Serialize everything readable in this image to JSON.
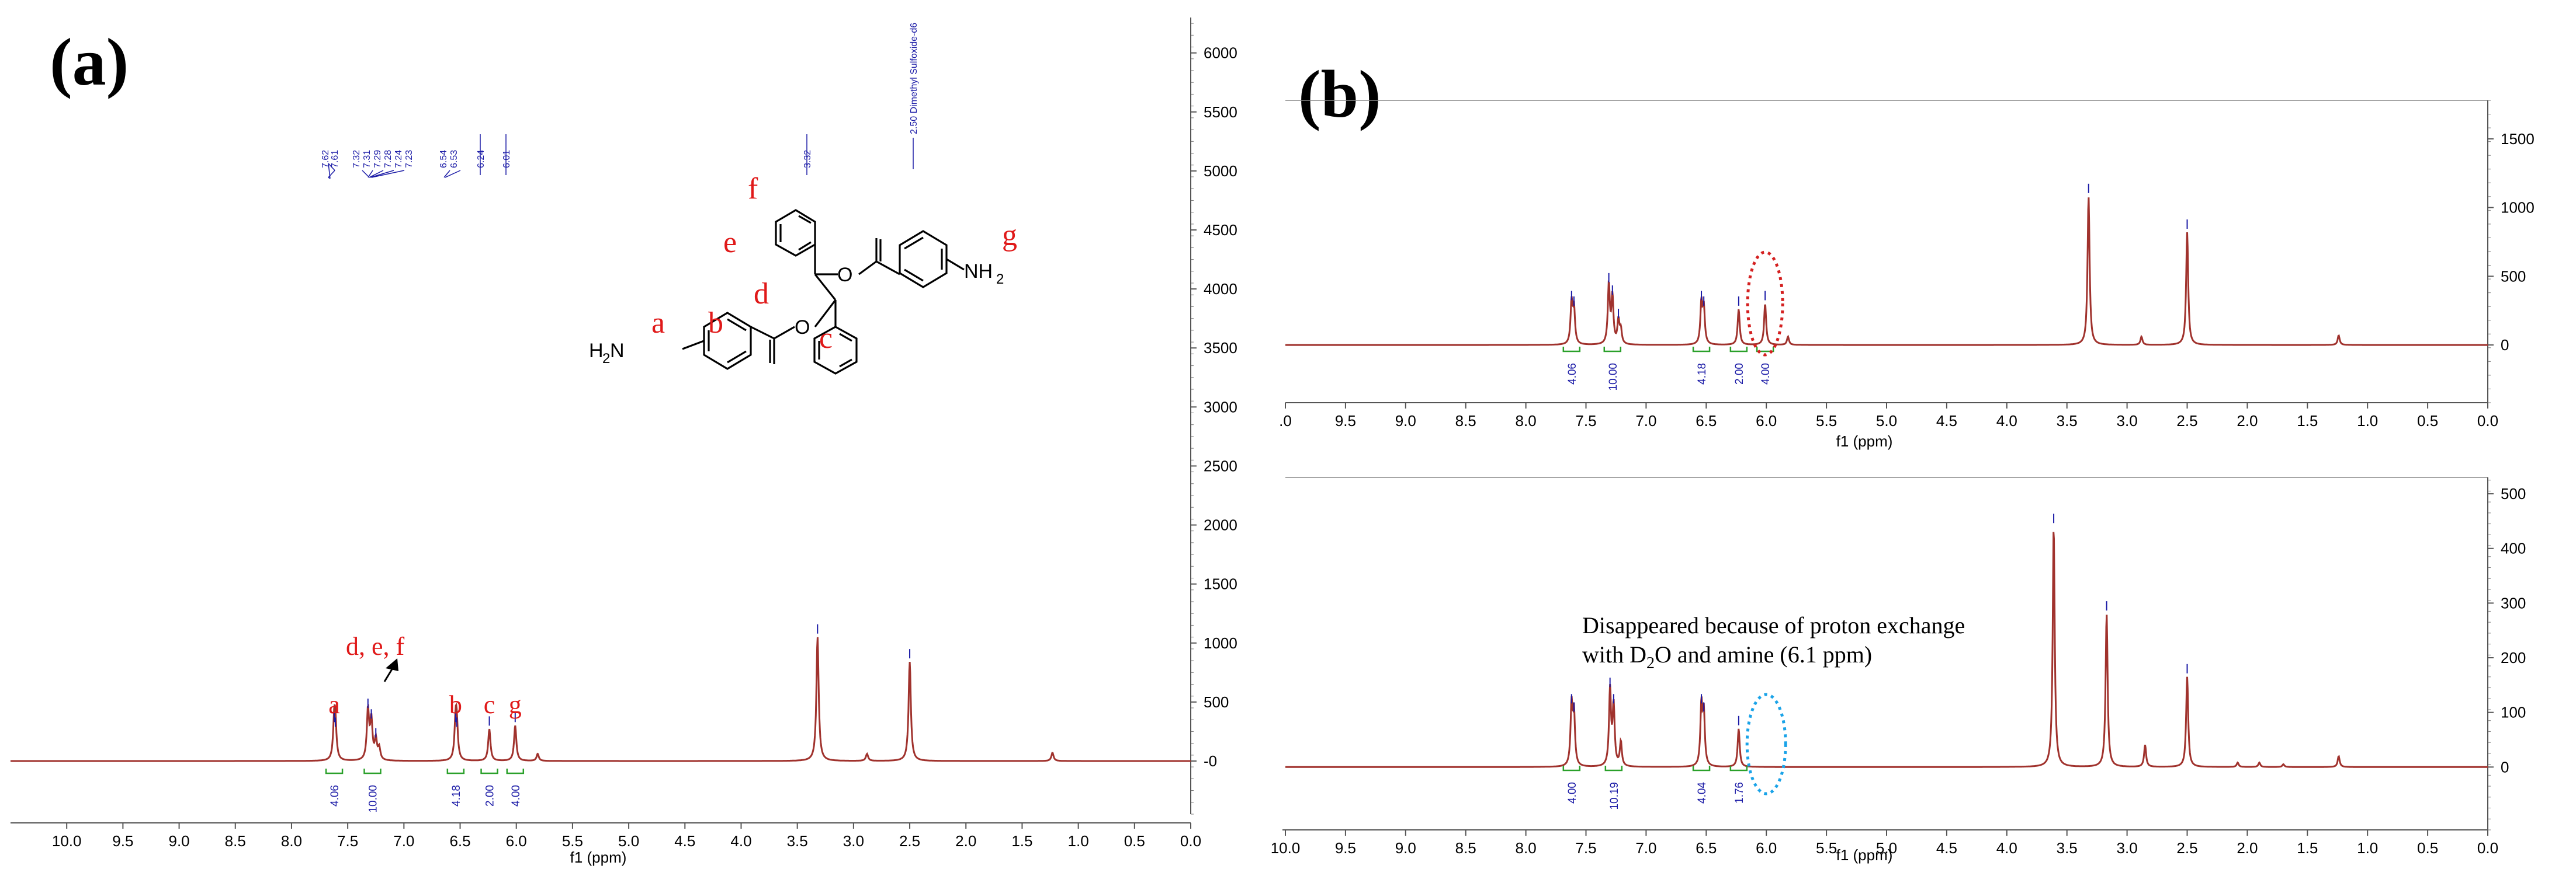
{
  "chart_data": [
    {
      "panel": "(a)",
      "type": "line",
      "xlabel": "f1 (ppm)",
      "xlim": [
        10.5,
        0.0
      ],
      "ylim": [
        -450,
        6300
      ],
      "x_ticks": [
        "10.0",
        "9.5",
        "9.0",
        "8.5",
        "8.0",
        "7.5",
        "7.0",
        "6.5",
        "6.0",
        "5.5",
        "5.0",
        "4.5",
        "4.0",
        "3.5",
        "3.0",
        "2.5",
        "2.0",
        "1.5",
        "1.0",
        "0.5",
        "0.0"
      ],
      "y_ticks": [
        "-0",
        "500",
        "1000",
        "1500",
        "2000",
        "2500",
        "3000",
        "3500",
        "4000",
        "4500",
        "5000",
        "5500",
        "6000"
      ],
      "series": [
        {
          "peaks": [
            {
              "x": 7.62,
              "y": 300
            },
            {
              "x": 7.61,
              "y": 260
            },
            {
              "x": 7.32,
              "y": 420
            },
            {
              "x": 7.29,
              "y": 330
            },
            {
              "x": 7.25,
              "y": 170
            },
            {
              "x": 7.22,
              "y": 100
            },
            {
              "x": 6.54,
              "y": 300
            },
            {
              "x": 6.53,
              "y": 260
            },
            {
              "x": 6.24,
              "y": 270
            },
            {
              "x": 6.01,
              "y": 300
            },
            {
              "x": 5.81,
              "y": 60
            },
            {
              "x": 3.32,
              "y": 1050
            },
            {
              "x": 2.88,
              "y": 60
            },
            {
              "x": 2.5,
              "y": 840
            },
            {
              "x": 1.23,
              "y": 70
            }
          ]
        }
      ],
      "peak_labels": [
        "7.62",
        "7.61",
        "7.32",
        "7.31",
        "7.29",
        "7.28",
        "7.24",
        "7.23",
        "6.54",
        "6.53",
        "6.24",
        "6.01",
        "3.32",
        "2.50 Dimethyl Sulfoxide-d6"
      ],
      "integrals": [
        {
          "x": 7.62,
          "value": "4.06"
        },
        {
          "x": 7.28,
          "value": "10.00"
        },
        {
          "x": 6.54,
          "value": "4.18"
        },
        {
          "x": 6.24,
          "value": "2.00"
        },
        {
          "x": 6.01,
          "value": "4.00"
        }
      ],
      "assignments": [
        {
          "x": 7.62,
          "label": "a"
        },
        {
          "x": 6.54,
          "label": "b"
        },
        {
          "x": 6.24,
          "label": "c"
        },
        {
          "x": 6.01,
          "label": "g"
        }
      ],
      "annotations": [
        "d, e, f"
      ]
    },
    {
      "panel": "(b) top",
      "type": "line",
      "xlabel": "f1 (ppm)",
      "xlim": [
        10.0,
        0.0
      ],
      "ylim": [
        -420,
        1780
      ],
      "x_ticks": [
        ".0",
        "9.5",
        "9.0",
        "8.5",
        "8.0",
        "7.5",
        "7.0",
        "6.5",
        "6.0",
        "5.5",
        "5.0",
        "4.5",
        "4.0",
        "3.5",
        "3.0",
        "2.5",
        "2.0",
        "1.5",
        "1.0",
        "0.5",
        "0.0"
      ],
      "y_ticks": [
        "0",
        "500",
        "1000",
        "1500"
      ],
      "series": [
        {
          "peaks": [
            {
              "x": 7.62,
              "y": 300
            },
            {
              "x": 7.6,
              "y": 260
            },
            {
              "x": 7.31,
              "y": 430
            },
            {
              "x": 7.28,
              "y": 340
            },
            {
              "x": 7.23,
              "y": 170
            },
            {
              "x": 7.21,
              "y": 100
            },
            {
              "x": 6.54,
              "y": 300
            },
            {
              "x": 6.52,
              "y": 260
            },
            {
              "x": 6.23,
              "y": 260
            },
            {
              "x": 6.01,
              "y": 300
            },
            {
              "x": 5.82,
              "y": 60
            },
            {
              "x": 3.32,
              "y": 1080
            },
            {
              "x": 2.88,
              "y": 60
            },
            {
              "x": 2.5,
              "y": 820
            },
            {
              "x": 1.24,
              "y": 70
            }
          ]
        }
      ],
      "integrals": [
        {
          "x": 7.62,
          "value": "4.06"
        },
        {
          "x": 7.28,
          "value": "10.00"
        },
        {
          "x": 6.54,
          "value": "4.18"
        },
        {
          "x": 6.23,
          "value": "2.00"
        },
        {
          "x": 6.01,
          "value": "4.00"
        }
      ],
      "highlight": {
        "x": 6.01,
        "color": "#d42020",
        "style": "dotted ellipse"
      }
    },
    {
      "panel": "(b) bottom",
      "type": "line",
      "xlabel": "f1 (ppm)",
      "xlim": [
        10.0,
        0.0
      ],
      "ylim": [
        -115,
        530
      ],
      "x_ticks": [
        "10.0",
        "9.5",
        "9.0",
        "8.5",
        "8.0",
        "7.5",
        "7.0",
        "6.5",
        "6.0",
        "5.5",
        "5.0",
        "4.5",
        "4.0",
        "3.5",
        "3.0",
        "2.5",
        "2.0",
        "1.5",
        "1.0",
        "0.5",
        "0.0"
      ],
      "y_ticks": [
        "0",
        "100",
        "200",
        "300",
        "400",
        "500"
      ],
      "series": [
        {
          "peaks": [
            {
              "x": 7.62,
              "y": 110
            },
            {
              "x": 7.6,
              "y": 95
            },
            {
              "x": 7.3,
              "y": 140
            },
            {
              "x": 7.27,
              "y": 110
            },
            {
              "x": 7.21,
              "y": 45
            },
            {
              "x": 6.54,
              "y": 110
            },
            {
              "x": 6.52,
              "y": 95
            },
            {
              "x": 6.23,
              "y": 70
            },
            {
              "x": 3.61,
              "y": 440
            },
            {
              "x": 3.17,
              "y": 280
            },
            {
              "x": 2.85,
              "y": 40
            },
            {
              "x": 2.5,
              "y": 165
            },
            {
              "x": 2.08,
              "y": 8
            },
            {
              "x": 1.9,
              "y": 8
            },
            {
              "x": 1.7,
              "y": 5
            },
            {
              "x": 1.24,
              "y": 20
            }
          ]
        }
      ],
      "integrals": [
        {
          "x": 7.62,
          "value": "4.00"
        },
        {
          "x": 7.27,
          "value": "10.19"
        },
        {
          "x": 6.54,
          "value": "4.04"
        },
        {
          "x": 6.23,
          "value": "1.76"
        }
      ],
      "highlight": {
        "x": 6.0,
        "color": "#1aa3e8",
        "style": "dotted ellipse"
      },
      "annotation_lines": [
        "Disappeared because of proton exchange",
        "with D",
        "2",
        "O and amine (6.1 ppm)"
      ]
    }
  ],
  "structure": {
    "labels": [
      "f",
      "e",
      "d",
      "a",
      "b",
      "c",
      "g"
    ],
    "atoms": {
      "amine_left": "H",
      "amine_left_sub": "2",
      "amine_left_n": "N",
      "amine_right": "NH",
      "amine_right_sub": "2",
      "oxygen": "O"
    }
  },
  "colors": {
    "spectrum": "#a0322d",
    "integral": "#2aa02a",
    "peak_label": "#1a1aa6",
    "assignment": "#e01919"
  }
}
